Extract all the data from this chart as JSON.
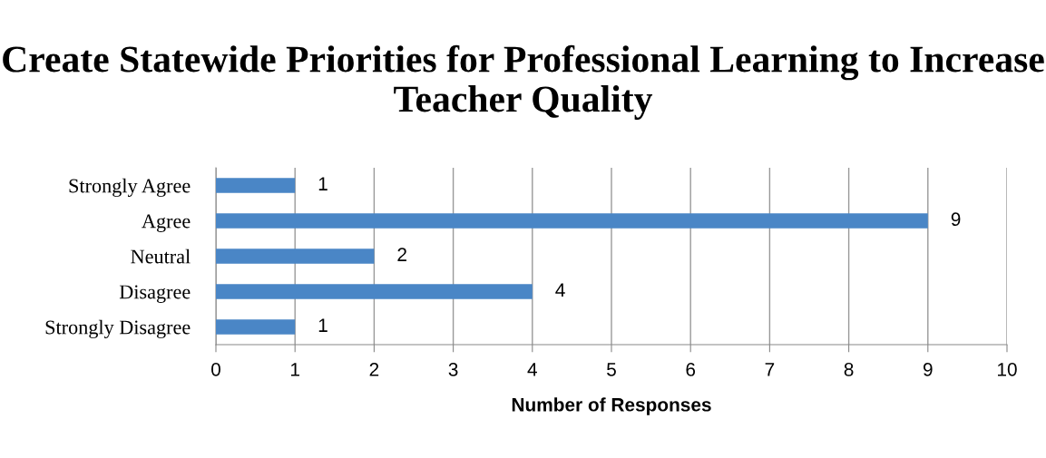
{
  "chart_data": {
    "type": "bar",
    "orientation": "horizontal",
    "title": "Create Statewide Priorities for Professional Learning to Increase Teacher Quality",
    "categories": [
      "Strongly Agree",
      "Agree",
      "Neutral",
      "Disagree",
      "Strongly Disagree"
    ],
    "values": [
      1,
      9,
      2,
      4,
      1
    ],
    "color": "#4a86c6",
    "xlabel": "Number of Responses",
    "xlim": [
      0,
      10
    ],
    "xticks": [
      0,
      1,
      2,
      3,
      4,
      5,
      6,
      7,
      8,
      9,
      10
    ],
    "grid": "x",
    "data_labels": true,
    "legend": false
  }
}
